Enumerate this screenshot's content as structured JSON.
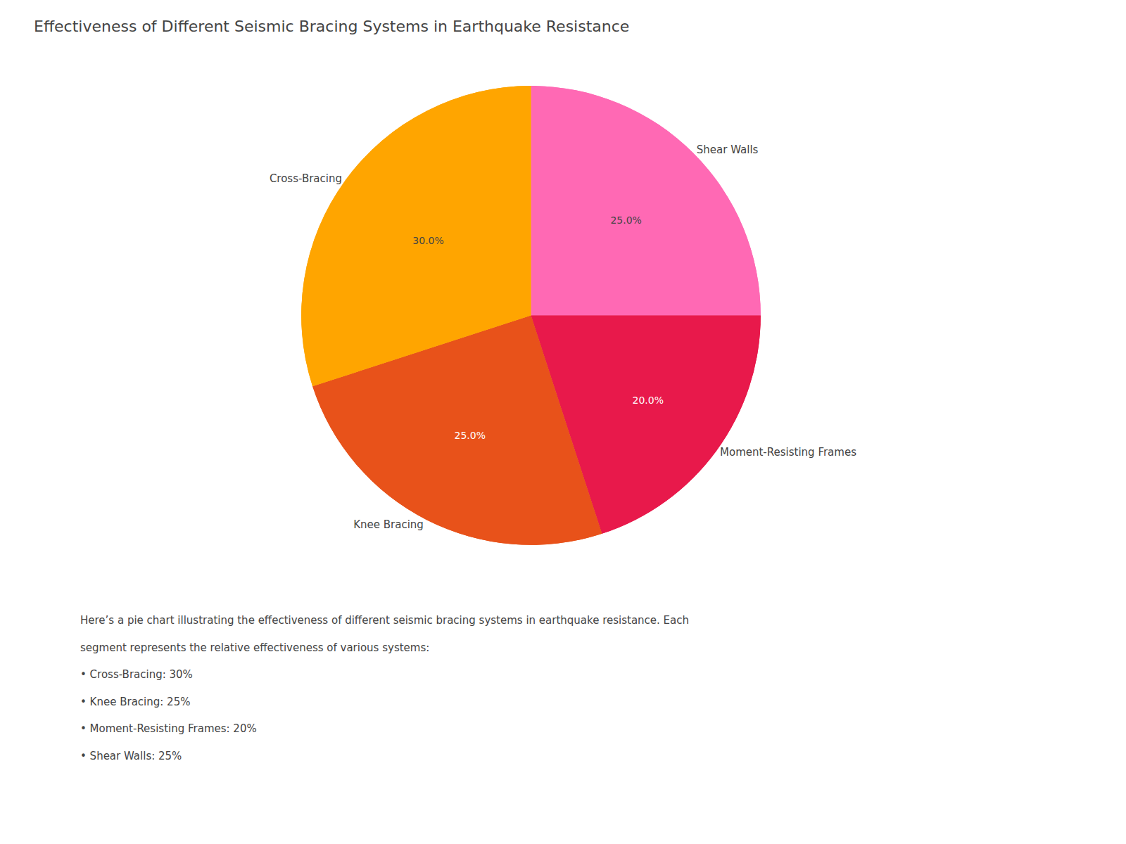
{
  "chart_data": {
    "type": "pie",
    "title": "Effectiveness of Different Seismic Bracing Systems in Earthquake Resistance",
    "categories": [
      "Shear Walls",
      "Moment-Resisting Frames",
      "Knee Bracing",
      "Cross-Bracing"
    ],
    "values": [
      25.0,
      20.0,
      25.0,
      30.0
    ],
    "value_labels": [
      "25.0%",
      "20.0%",
      "25.0%",
      "30.0%"
    ],
    "colors": [
      "#FF69B4",
      "#E8194B",
      "#E8521A",
      "#FFA500"
    ],
    "data_labels": true,
    "annotations": [
      "Here’s a pie chart illustrating the effectiveness of different seismic bracing systems in earthquake resistance. Each",
      "segment represents the relative effectiveness of various systems:",
      "• Cross-Bracing: 30%",
      "• Knee Bracing: 25%",
      "• Moment-Resisting Frames: 20%",
      "• Shear Walls: 25%"
    ]
  }
}
